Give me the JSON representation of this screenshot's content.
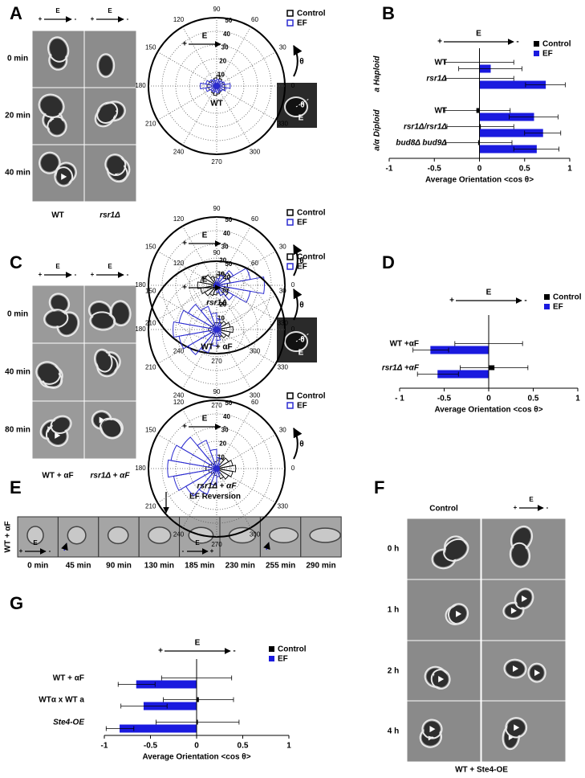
{
  "figure": {
    "panel_labels": [
      "A",
      "B",
      "C",
      "D",
      "E",
      "F",
      "G"
    ],
    "field": {
      "plus": "+",
      "label": "E",
      "minus": "-"
    },
    "theta": "θ",
    "panel_a": {
      "times": [
        "0 min",
        "20 min",
        "40 min"
      ],
      "strains": [
        "WT",
        "rsr1Δ"
      ]
    },
    "panel_c": {
      "times": [
        "0 min",
        "40 min",
        "80 min"
      ],
      "strains": [
        "WT + αF",
        "rsr1Δ + αF"
      ]
    },
    "panel_e": {
      "row_label": "WT + αF",
      "event": "EF Reversion",
      "times": [
        "0 min",
        "45 min",
        "90 min",
        "130 min",
        "185 min",
        "230 min",
        "255 min",
        "290 min"
      ]
    },
    "panel_f": {
      "column": "Control",
      "times": [
        "0 h",
        "1 h",
        "2 h",
        "4 h"
      ],
      "strain": "WT + Ste4-OE"
    }
  },
  "chart_data": [
    {
      "type": "polar",
      "label": "WT",
      "rlim": [
        0,
        50
      ],
      "rticks": [
        10,
        20,
        30,
        40,
        50
      ],
      "angle_ticks": [
        0,
        30,
        60,
        90,
        120,
        150,
        180,
        210,
        240,
        270,
        300,
        330
      ],
      "theta": [
        0,
        20,
        40,
        60,
        80,
        100,
        120,
        140,
        160,
        180,
        200,
        220,
        240,
        260,
        280,
        300,
        320,
        340
      ],
      "series": [
        {
          "name": "Control",
          "color": "#000000",
          "values": [
            6,
            5,
            5,
            6,
            8,
            6,
            5,
            5,
            6,
            7,
            6,
            5,
            6,
            7,
            6,
            5,
            5,
            6
          ]
        },
        {
          "name": "EF",
          "color": "#2b2bd0",
          "values": [
            10,
            6,
            5,
            4,
            5,
            4,
            5,
            6,
            8,
            12,
            8,
            5,
            5,
            4,
            5,
            4,
            5,
            7
          ]
        }
      ]
    },
    {
      "type": "polar",
      "label": "rsr1Δ",
      "rlim": [
        0,
        50
      ],
      "rticks": [
        10,
        20,
        30,
        40,
        50
      ],
      "angle_ticks": [
        0,
        30,
        60,
        90,
        120,
        150,
        180,
        210,
        240,
        270,
        300,
        330
      ],
      "theta": [
        0,
        20,
        40,
        60,
        80,
        100,
        120,
        140,
        160,
        180,
        200,
        220,
        240,
        260,
        280,
        300,
        320,
        340
      ],
      "series": [
        {
          "name": "Control",
          "color": "#000000",
          "values": [
            8,
            10,
            12,
            10,
            8,
            6,
            7,
            10,
            12,
            14,
            12,
            10,
            8,
            7,
            6,
            8,
            10,
            9
          ]
        },
        {
          "name": "EF",
          "color": "#2b2bd0",
          "values": [
            35,
            25,
            14,
            8,
            5,
            3,
            2,
            2,
            2,
            2,
            2,
            2,
            2,
            3,
            5,
            8,
            14,
            25
          ]
        }
      ]
    },
    {
      "type": "hbar",
      "xlabel": "Average Orientation <cos θ>",
      "xlim": [
        -1,
        1
      ],
      "xticks": [
        -1,
        -0.5,
        0,
        0.5,
        1
      ],
      "groups": [
        {
          "name": "a Haploid",
          "categories": [
            "WT",
            "rsr1Δ"
          ]
        },
        {
          "name": "a/α Diploid",
          "categories": [
            "WT",
            "rsr1Δ/rsr1Δ",
            "bud8Δ bud9Δ"
          ]
        }
      ],
      "series": [
        {
          "name": "Control",
          "color": "#000000",
          "values": [
            0.0,
            0.0,
            -0.03,
            0.01,
            -0.01
          ],
          "errors": [
            0.38,
            0.38,
            0.37,
            0.37,
            0.37
          ]
        },
        {
          "name": "EF",
          "color": "#1a1adf",
          "values": [
            0.12,
            0.73,
            0.6,
            0.7,
            0.63
          ],
          "errors": [
            0.35,
            0.22,
            0.27,
            0.2,
            0.25
          ]
        }
      ]
    },
    {
      "type": "polar",
      "label": "WT + αF",
      "rlim": [
        0,
        50
      ],
      "rticks": [
        10,
        20,
        30,
        40,
        50
      ],
      "angle_ticks": [
        0,
        30,
        60,
        90,
        120,
        150,
        180,
        210,
        240,
        270,
        300,
        330
      ],
      "theta": [
        0,
        20,
        40,
        60,
        80,
        100,
        120,
        140,
        160,
        180,
        200,
        220,
        240,
        260,
        280,
        300,
        320,
        340
      ],
      "series": [
        {
          "name": "Control",
          "color": "#000000",
          "values": [
            12,
            10,
            8,
            6,
            5,
            5,
            4,
            4,
            5,
            6,
            5,
            4,
            4,
            5,
            5,
            6,
            8,
            10
          ]
        },
        {
          "name": "EF",
          "color": "#2b2bd0",
          "values": [
            3,
            3,
            4,
            5,
            8,
            12,
            18,
            24,
            28,
            32,
            28,
            24,
            18,
            12,
            8,
            5,
            4,
            3
          ]
        }
      ]
    },
    {
      "type": "polar",
      "label": "rsr1Δ + αF",
      "rlim": [
        0,
        50
      ],
      "rticks": [
        10,
        20,
        30,
        40,
        50
      ],
      "angle_ticks": [
        0,
        30,
        60,
        90,
        120,
        150,
        180,
        210,
        240,
        270,
        300,
        330
      ],
      "theta": [
        0,
        20,
        40,
        60,
        80,
        100,
        120,
        140,
        160,
        180,
        200,
        220,
        240,
        260,
        280,
        300,
        320,
        340
      ],
      "series": [
        {
          "name": "Control",
          "color": "#000000",
          "values": [
            14,
            12,
            10,
            8,
            6,
            5,
            4,
            5,
            6,
            8,
            6,
            5,
            4,
            5,
            6,
            8,
            10,
            12
          ]
        },
        {
          "name": "EF",
          "color": "#2b2bd0",
          "values": [
            2,
            2,
            2,
            4,
            8,
            14,
            22,
            30,
            34,
            36,
            32,
            26,
            20,
            12,
            6,
            4,
            2,
            2
          ]
        }
      ]
    },
    {
      "type": "hbar",
      "xlabel": "Average Orientation <cos θ>",
      "xlim": [
        -1,
        1
      ],
      "xticks": [
        {
          "value": -1,
          "label": "- 1"
        },
        -0.5,
        0,
        0.5,
        1
      ],
      "categories": [
        "WT +αF",
        "rsr1Δ +αF"
      ],
      "series": [
        {
          "name": "Control",
          "color": "#000000",
          "values": [
            0.0,
            0.06
          ],
          "errors": [
            0.38,
            0.38
          ]
        },
        {
          "name": "EF",
          "color": "#1a1adf",
          "values": [
            -0.65,
            -0.57
          ],
          "errors": [
            0.2,
            0.23
          ]
        }
      ]
    },
    {
      "type": "hbar",
      "xlabel": "Average Orientation <cos θ>",
      "xlim": [
        -1,
        1
      ],
      "xticks": [
        -1,
        -0.5,
        0,
        0.5,
        1
      ],
      "categories": [
        "WT + αF",
        "WTα x WT a",
        "Ste4-OE"
      ],
      "series": [
        {
          "name": "Control",
          "color": "#000000",
          "values": [
            0.0,
            0.02,
            0.01
          ],
          "errors": [
            0.38,
            0.38,
            0.45
          ]
        },
        {
          "name": "EF",
          "color": "#1a1adf",
          "values": [
            -0.65,
            -0.57,
            -0.83
          ],
          "errors": [
            0.2,
            0.25,
            0.15
          ]
        }
      ]
    }
  ]
}
